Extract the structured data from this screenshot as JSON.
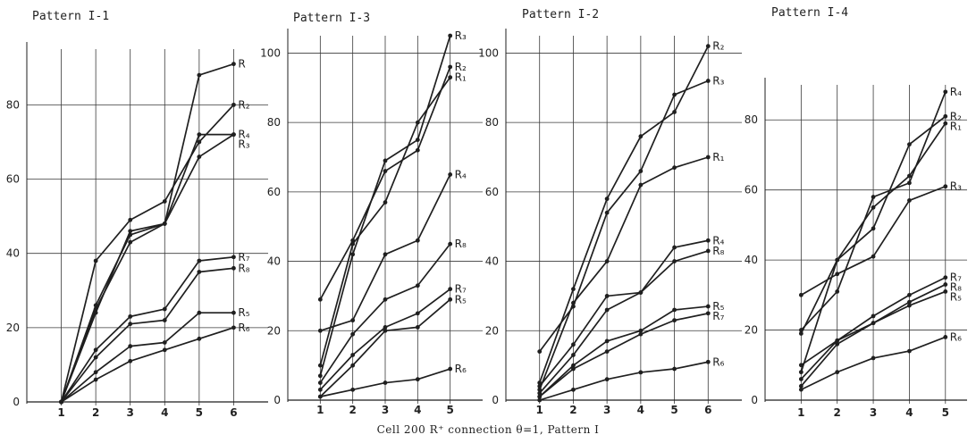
{
  "caption": "Cell 200 R⁺ connection θ=1, Pattern I",
  "colors": {
    "ink": "#1f1f1f",
    "grid": "#3a3a3a",
    "faint": "#8a8a8a"
  },
  "chart_data": [
    {
      "type": "line",
      "title": "Pattern I-1",
      "x": [
        1,
        2,
        3,
        4,
        5,
        6
      ],
      "xlim": [
        0,
        7
      ],
      "ylim": [
        0,
        95
      ],
      "x_ticks": [
        1,
        2,
        3,
        4,
        5,
        6
      ],
      "y_ticks": [
        0,
        20,
        40,
        60,
        80
      ],
      "grid": true,
      "series": [
        {
          "name": "R",
          "values": [
            0,
            26,
            45,
            48,
            88,
            91
          ]
        },
        {
          "name": "R₂",
          "values": [
            0,
            38,
            49,
            54,
            70,
            80
          ]
        },
        {
          "name": "R₄",
          "values": [
            0,
            24,
            46,
            48,
            72,
            72
          ]
        },
        {
          "name": "R₃",
          "values": [
            0,
            25,
            43,
            48,
            66,
            72
          ]
        },
        {
          "name": "R₇",
          "values": [
            0,
            14,
            23,
            25,
            38,
            39
          ]
        },
        {
          "name": "R₈",
          "values": [
            0,
            12,
            21,
            22,
            35,
            36
          ]
        },
        {
          "name": "R₅",
          "values": [
            0,
            8,
            15,
            16,
            24,
            24
          ]
        },
        {
          "name": "R₆",
          "values": [
            0,
            6,
            11,
            14,
            17,
            20
          ]
        }
      ]
    },
    {
      "type": "line",
      "title": "Pattern I-3",
      "x": [
        1,
        2,
        3,
        4,
        5
      ],
      "xlim": [
        0,
        6
      ],
      "ylim": [
        0,
        105
      ],
      "x_ticks": [
        1,
        2,
        3,
        4,
        5
      ],
      "y_ticks": [
        0,
        20,
        40,
        60,
        80,
        100
      ],
      "grid": true,
      "series": [
        {
          "name": "R₃",
          "values": [
            7,
            42,
            69,
            75,
            105
          ]
        },
        {
          "name": "R₂",
          "values": [
            29,
            46,
            66,
            72,
            96
          ]
        },
        {
          "name": "R₁",
          "values": [
            10,
            45,
            57,
            80,
            93
          ]
        },
        {
          "name": "R₄",
          "values": [
            20,
            23,
            42,
            46,
            65
          ]
        },
        {
          "name": "R₈",
          "values": [
            5,
            19,
            29,
            33,
            45
          ]
        },
        {
          "name": "R₇",
          "values": [
            3,
            13,
            21,
            25,
            32
          ]
        },
        {
          "name": "R₅",
          "values": [
            1,
            10,
            20,
            21,
            29
          ]
        },
        {
          "name": "R₆",
          "values": [
            1,
            3,
            5,
            6,
            9
          ]
        }
      ]
    },
    {
      "type": "line",
      "title": "Pattern I-2",
      "x": [
        1,
        2,
        3,
        4,
        5,
        6
      ],
      "xlim": [
        0,
        7
      ],
      "ylim": [
        0,
        105
      ],
      "x_ticks": [
        1,
        2,
        3,
        4,
        5,
        6
      ],
      "y_ticks": [
        0,
        20,
        40,
        60,
        80,
        100
      ],
      "grid": true,
      "series": [
        {
          "name": "R₂",
          "values": [
            5,
            32,
            58,
            76,
            83,
            102
          ]
        },
        {
          "name": "R₃",
          "values": [
            14,
            27,
            54,
            66,
            88,
            92
          ]
        },
        {
          "name": "R₁",
          "values": [
            3,
            28,
            40,
            62,
            67,
            70
          ]
        },
        {
          "name": "R₄",
          "values": [
            4,
            16,
            30,
            31,
            44,
            46
          ]
        },
        {
          "name": "R₈",
          "values": [
            2,
            13,
            26,
            31,
            40,
            43
          ]
        },
        {
          "name": "R₅",
          "values": [
            1,
            10,
            17,
            20,
            26,
            27
          ]
        },
        {
          "name": "R₇",
          "values": [
            1,
            9,
            14,
            19,
            23,
            25
          ]
        },
        {
          "name": "R₆",
          "values": [
            0,
            3,
            6,
            8,
            9,
            11
          ]
        }
      ]
    },
    {
      "type": "line",
      "title": "Pattern I-4",
      "x": [
        1,
        2,
        3,
        4,
        5
      ],
      "xlim": [
        0,
        5.6
      ],
      "ylim": [
        0,
        90
      ],
      "x_ticks": [
        1,
        2,
        3,
        4,
        5
      ],
      "y_ticks": [
        0,
        20,
        40,
        60,
        80
      ],
      "grid": true,
      "series": [
        {
          "name": "R₄",
          "values": [
            20,
            31,
            58,
            62,
            88
          ]
        },
        {
          "name": "R₂",
          "values": [
            19,
            40,
            49,
            73,
            81
          ]
        },
        {
          "name": "R₁",
          "values": [
            8,
            40,
            55,
            64,
            79
          ]
        },
        {
          "name": "R₃",
          "values": [
            30,
            36,
            41,
            57,
            61
          ]
        },
        {
          "name": "R₇",
          "values": [
            10,
            17,
            24,
            30,
            35
          ]
        },
        {
          "name": "R₈",
          "values": [
            6,
            17,
            22,
            28,
            33
          ]
        },
        {
          "name": "R₅",
          "values": [
            4,
            16,
            22,
            27,
            31
          ]
        },
        {
          "name": "R₆",
          "values": [
            3,
            8,
            12,
            14,
            18
          ]
        }
      ]
    }
  ]
}
